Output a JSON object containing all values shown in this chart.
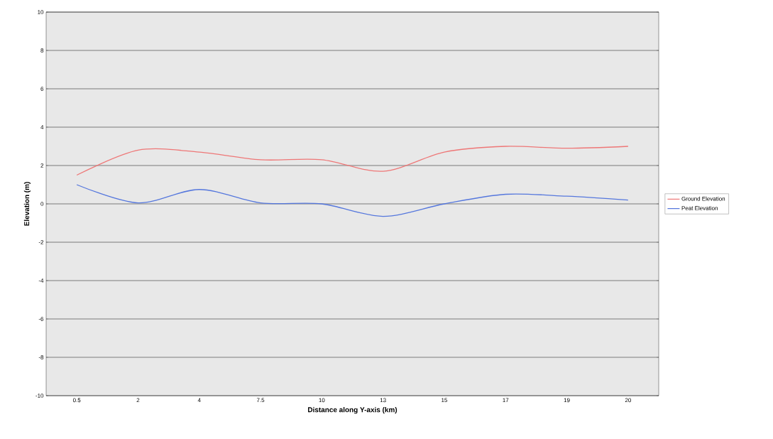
{
  "chart_data": {
    "type": "line",
    "xlabel": "Distance along Y-axis (km)",
    "ylabel": "Elevation (m)",
    "categories": [
      "0.5",
      "2",
      "4",
      "7.5",
      "10",
      "13",
      "15",
      "17",
      "19",
      "20"
    ],
    "series": [
      {
        "name": "Ground Elevation",
        "color": "#ee7777",
        "values": [
          1.5,
          2.8,
          2.7,
          2.3,
          2.3,
          1.7,
          2.7,
          3.0,
          2.9,
          3.0
        ]
      },
      {
        "name": "Peat Elevation",
        "color": "#5577dd",
        "values": [
          1.0,
          0.05,
          0.75,
          0.05,
          0.0,
          -0.65,
          0.0,
          0.5,
          0.4,
          0.2
        ]
      }
    ],
    "ylim": [
      -10,
      10
    ],
    "yticks": [
      -10,
      -8,
      -6,
      -4,
      -2,
      0,
      2,
      4,
      6,
      8,
      10
    ],
    "grid": "y",
    "legend": "right"
  }
}
